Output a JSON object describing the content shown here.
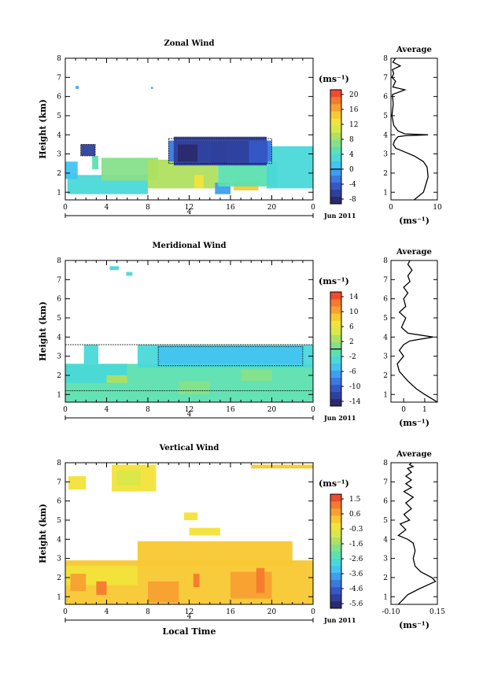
{
  "colors": [
    "#2b2a6e",
    "#2f3f9c",
    "#3558c8",
    "#3b78e0",
    "#3f9ef0",
    "#42c4f0",
    "#4ad8d8",
    "#5ce0b0",
    "#86e08a",
    "#b0e060",
    "#d8e84a",
    "#f2e33a",
    "#f8c832",
    "#f8a030",
    "#f57a2e",
    "#ef4b2c"
  ],
  "chart_data": [
    {
      "type": "heatmap",
      "title": "Zonal Wind",
      "ylabel": "Height (km)",
      "xlabel": "",
      "xlim": [
        0,
        24
      ],
      "ylim": [
        0.6,
        8
      ],
      "xticks": [
        "0",
        "4",
        "8",
        "12",
        "16",
        "20",
        "0"
      ],
      "yticks": [
        "1",
        "2",
        "3",
        "4",
        "5",
        "6",
        "7",
        "8"
      ],
      "date_text": "4",
      "date_suffix": "Jun 2011",
      "units": "(ms⁻¹)",
      "cbar_labels": [
        "20",
        "16",
        "12",
        "8",
        "4",
        "0",
        "-4",
        "-8"
      ],
      "cbar_zero_index": 5,
      "cells": [
        {
          "x0": 0.2,
          "x1": 8,
          "y0": 0.9,
          "y1": 1.9,
          "v": 6
        },
        {
          "x0": 0,
          "x1": 1.2,
          "y0": 1.7,
          "y1": 2.6,
          "v": 5
        },
        {
          "x0": 1.5,
          "x1": 2.9,
          "y0": 2.9,
          "y1": 3.5,
          "v": 1
        },
        {
          "x0": 2.6,
          "x1": 3.2,
          "y0": 2.2,
          "y1": 2.9,
          "v": 7
        },
        {
          "x0": 3.5,
          "x1": 9,
          "y0": 1.6,
          "y1": 2.8,
          "v": 8
        },
        {
          "x0": 8,
          "x1": 14.8,
          "y0": 1.2,
          "y1": 2.7,
          "v": 9
        },
        {
          "x0": 12.5,
          "x1": 13.4,
          "y0": 1.2,
          "y1": 1.9,
          "v": 11
        },
        {
          "x0": 16.3,
          "x1": 18.7,
          "y0": 1.1,
          "y1": 1.6,
          "v": 12
        },
        {
          "x0": 14.5,
          "x1": 16,
          "y0": 0.9,
          "y1": 1.5,
          "v": 4
        },
        {
          "x0": 14.8,
          "x1": 20.5,
          "y0": 1.3,
          "y1": 2.6,
          "v": 7
        },
        {
          "x0": 19.5,
          "x1": 24,
          "y0": 1.2,
          "y1": 3.4,
          "v": 6
        },
        {
          "x0": 10,
          "x1": 20,
          "y0": 2.6,
          "y1": 3.7,
          "v": 3
        },
        {
          "x0": 10.5,
          "x1": 19.5,
          "y0": 2.4,
          "y1": 3.9,
          "v": 1
        },
        {
          "x0": 10.9,
          "x1": 12.8,
          "y0": 2.6,
          "y1": 3.5,
          "v": 0
        },
        {
          "x0": 14.1,
          "x1": 15.7,
          "y0": 2.5,
          "y1": 3.6,
          "v": 1
        },
        {
          "x0": 17.8,
          "x1": 19.6,
          "y0": 2.5,
          "y1": 3.7,
          "v": 2
        },
        {
          "x0": 8.3,
          "x1": 8.5,
          "y0": 6.4,
          "y1": 6.5,
          "v": 4
        },
        {
          "x0": 1,
          "x1": 1.3,
          "y0": 6.4,
          "y1": 6.55,
          "v": 4
        }
      ],
      "contours": [
        {
          "x0": 1.5,
          "x1": 2.9,
          "y0": 2.9,
          "y1": 3.5
        },
        {
          "x0": 10,
          "x1": 20,
          "y0": 2.5,
          "y1": 3.8
        }
      ],
      "avg": {
        "xlim": [
          0,
          10
        ],
        "ylim": [
          0.6,
          8
        ],
        "xticks": [
          "0",
          "10"
        ],
        "title": "Average",
        "xunit": "(ms⁻¹)",
        "profile_x": [
          5,
          6,
          7,
          7.5,
          8,
          7.8,
          7,
          5,
          3,
          1,
          0.5,
          0.8,
          1.5,
          3,
          8,
          3,
          1.5,
          0.6,
          0.2,
          0.5,
          0.3,
          3,
          0.4,
          1,
          0.2,
          0.6,
          0.3,
          2,
          0.4,
          1
        ],
        "profile_y": [
          0.6,
          0.8,
          1,
          1.4,
          1.8,
          2.3,
          2.6,
          2.9,
          3.1,
          3.3,
          3.5,
          3.7,
          3.9,
          3.95,
          4.0,
          4.05,
          4.2,
          4.5,
          5,
          5.6,
          6.1,
          6.35,
          6.5,
          6.8,
          7,
          7.2,
          7.4,
          7.6,
          7.8,
          8
        ]
      }
    },
    {
      "type": "heatmap",
      "title": "Meridional Wind",
      "ylabel": "Height (km)",
      "xlabel": "",
      "xlim": [
        0,
        24
      ],
      "ylim": [
        0.6,
        8
      ],
      "xticks": [
        "0",
        "4",
        "8",
        "12",
        "16",
        "20",
        "0"
      ],
      "yticks": [
        "1",
        "2",
        "3",
        "4",
        "5",
        "6",
        "7",
        "8"
      ],
      "date_text": "4",
      "date_suffix": "Jun 2011",
      "units": "(ms⁻¹)",
      "cbar_labels": [
        "14",
        "10",
        "6",
        "2",
        "-2",
        "-6",
        "-10",
        "-14"
      ],
      "cbar_zero_index": 3.5,
      "cells": [
        {
          "x0": 0,
          "x1": 24,
          "y0": 0.6,
          "y1": 2.6,
          "v": 7
        },
        {
          "x0": 0,
          "x1": 6,
          "y0": 1.6,
          "y1": 2.6,
          "v": 6
        },
        {
          "x0": 1.8,
          "x1": 3.2,
          "y0": 2.6,
          "y1": 3.6,
          "v": 6
        },
        {
          "x0": 7,
          "x1": 24,
          "y0": 2.4,
          "y1": 3.6,
          "v": 6
        },
        {
          "x0": 9,
          "x1": 23,
          "y0": 2.6,
          "y1": 3.5,
          "v": 5
        },
        {
          "x0": 11,
          "x1": 14,
          "y0": 1.0,
          "y1": 1.7,
          "v": 8
        },
        {
          "x0": 4,
          "x1": 6,
          "y0": 1.6,
          "y1": 2.0,
          "v": 9
        },
        {
          "x0": 17,
          "x1": 20,
          "y0": 1.7,
          "y1": 2.3,
          "v": 8
        },
        {
          "x0": 4.3,
          "x1": 5.2,
          "y0": 7.5,
          "y1": 7.7,
          "v": 6
        },
        {
          "x0": 5.9,
          "x1": 6.5,
          "y0": 7.2,
          "y1": 7.4,
          "v": 6
        }
      ],
      "contours": [
        {
          "x0": 0,
          "x1": 24,
          "y0": 1.2,
          "y1": 3.6
        },
        {
          "x0": 9,
          "x1": 23,
          "y0": 2.5,
          "y1": 3.5
        }
      ],
      "avg": {
        "xlim": [
          -0.6,
          1.6
        ],
        "ylim": [
          0.6,
          8
        ],
        "xticks": [
          "0",
          "1"
        ],
        "title": "Average",
        "xunit": "(ms⁻¹)",
        "profile_x": [
          1.6,
          1.3,
          1.0,
          0.6,
          0.2,
          -0.2,
          -0.3,
          0,
          -0.2,
          0,
          0.3,
          1.4,
          0.2,
          -0.1,
          0.1,
          -0.2,
          0.1,
          0,
          0.2,
          0,
          0.3,
          0.2,
          0.4,
          0.2,
          0.3
        ],
        "profile_y": [
          0.6,
          0.8,
          1.0,
          1.3,
          1.7,
          2.2,
          2.6,
          3.0,
          3.3,
          3.6,
          3.8,
          4.0,
          4.2,
          4.5,
          5.0,
          5.3,
          5.6,
          6.0,
          6.3,
          6.6,
          6.9,
          7.2,
          7.5,
          7.8,
          8.0
        ]
      }
    },
    {
      "type": "heatmap",
      "title": "Vertical Wind",
      "ylabel": "Height (km)",
      "xlabel": "Local Time",
      "xlim": [
        0,
        24
      ],
      "ylim": [
        0.6,
        8
      ],
      "xticks": [
        "0",
        "4",
        "8",
        "12",
        "16",
        "20",
        "0"
      ],
      "yticks": [
        "1",
        "2",
        "3",
        "4",
        "5",
        "6",
        "7",
        "8"
      ],
      "date_text": "4",
      "date_suffix": "Jun 2011",
      "units": "(ms⁻¹)",
      "cbar_labels": [
        "1.5",
        "0.6",
        "-0.3",
        "-1.6",
        "-2.6",
        "-3.6",
        "-4.6",
        "-5.6"
      ],
      "cbar_zero_index": -1,
      "cells": [
        {
          "x0": 0,
          "x1": 24,
          "y0": 0.6,
          "y1": 2.9,
          "v": 12
        },
        {
          "x0": 7,
          "x1": 22,
          "y0": 2.6,
          "y1": 3.9,
          "v": 12
        },
        {
          "x0": 0,
          "x1": 7,
          "y0": 1.6,
          "y1": 2.6,
          "v": 11
        },
        {
          "x0": 8,
          "x1": 11,
          "y0": 0.7,
          "y1": 1.8,
          "v": 13
        },
        {
          "x0": 3,
          "x1": 4,
          "y0": 1.1,
          "y1": 1.8,
          "v": 14
        },
        {
          "x0": 16,
          "x1": 20,
          "y0": 0.9,
          "y1": 2.3,
          "v": 13
        },
        {
          "x0": 18.5,
          "x1": 19.3,
          "y0": 1.2,
          "y1": 2.5,
          "v": 14
        },
        {
          "x0": 12.4,
          "x1": 13,
          "y0": 1.5,
          "y1": 2.2,
          "v": 14
        },
        {
          "x0": 0.5,
          "x1": 2,
          "y0": 1.3,
          "y1": 2.2,
          "v": 13
        },
        {
          "x0": 0.3,
          "x1": 2,
          "y0": 6.6,
          "y1": 7.3,
          "v": 11
        },
        {
          "x0": 4.5,
          "x1": 8.8,
          "y0": 6.5,
          "y1": 7.9,
          "v": 11
        },
        {
          "x0": 5,
          "x1": 7.3,
          "y0": 6.8,
          "y1": 7.6,
          "v": 10
        },
        {
          "x0": 12,
          "x1": 15,
          "y0": 4.2,
          "y1": 4.6,
          "v": 11
        },
        {
          "x0": 18,
          "x1": 24,
          "y0": 7.7,
          "y1": 7.9,
          "v": 12
        },
        {
          "x0": 11.5,
          "x1": 12.8,
          "y0": 5.0,
          "y1": 5.4,
          "v": 11
        }
      ],
      "contours": [],
      "avg": {
        "xlim": [
          -0.1,
          0.15
        ],
        "ylim": [
          0.6,
          8
        ],
        "xticks": [
          "-0.10",
          "0.15"
        ],
        "title": "Average",
        "xunit": "(ms⁻¹)",
        "profile_x": [
          -0.06,
          -0.04,
          -0.01,
          0.05,
          0.14,
          0.12,
          0.06,
          0.03,
          0.02,
          0.03,
          0.02,
          -0.01,
          -0.06,
          -0.02,
          -0.05,
          0,
          -0.03,
          0.01,
          -0.02,
          0.02,
          -0.03,
          0.01,
          -0.02,
          0.01,
          -0.02,
          0.01,
          -0.01,
          0.02,
          0,
          0.01
        ],
        "profile_y": [
          0.6,
          0.8,
          1.1,
          1.4,
          1.8,
          2.0,
          2.3,
          2.6,
          3.0,
          3.4,
          3.8,
          4.0,
          4.2,
          4.5,
          4.8,
          5.0,
          5.3,
          5.6,
          5.9,
          6.2,
          6.5,
          6.7,
          6.9,
          7.1,
          7.3,
          7.5,
          7.7,
          7.8,
          7.9,
          8.0
        ]
      }
    }
  ]
}
